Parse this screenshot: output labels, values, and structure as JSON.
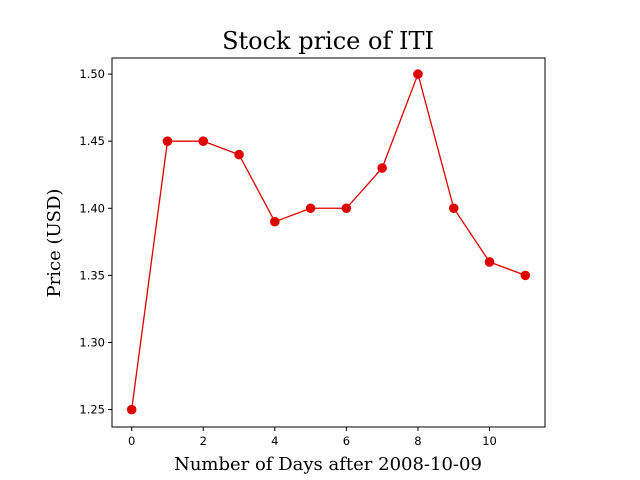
{
  "chart_data": {
    "type": "line",
    "title": "Stock price of ITI",
    "xlabel": "Number of Days after 2008-10-09",
    "ylabel": "Price (USD)",
    "xlim": [
      -0.55,
      11.55
    ],
    "ylim": [
      1.237,
      1.512
    ],
    "xticks": [
      0,
      2,
      4,
      6,
      8,
      10
    ],
    "yticks": [
      1.25,
      1.3,
      1.35,
      1.4,
      1.45,
      1.5
    ],
    "xtick_labels": [
      "0",
      "2",
      "4",
      "6",
      "8",
      "10"
    ],
    "ytick_labels": [
      "1.25",
      "1.30",
      "1.35",
      "1.40",
      "1.45",
      "1.50"
    ],
    "grid": false,
    "series": [
      {
        "color": "#e00000",
        "marker": "circle",
        "x": [
          0,
          1,
          2,
          3,
          4,
          5,
          6,
          7,
          8,
          9,
          10,
          11
        ],
        "y": [
          1.25,
          1.45,
          1.45,
          1.44,
          1.39,
          1.4,
          1.4,
          1.43,
          1.5,
          1.4,
          1.36,
          1.35
        ]
      }
    ]
  }
}
